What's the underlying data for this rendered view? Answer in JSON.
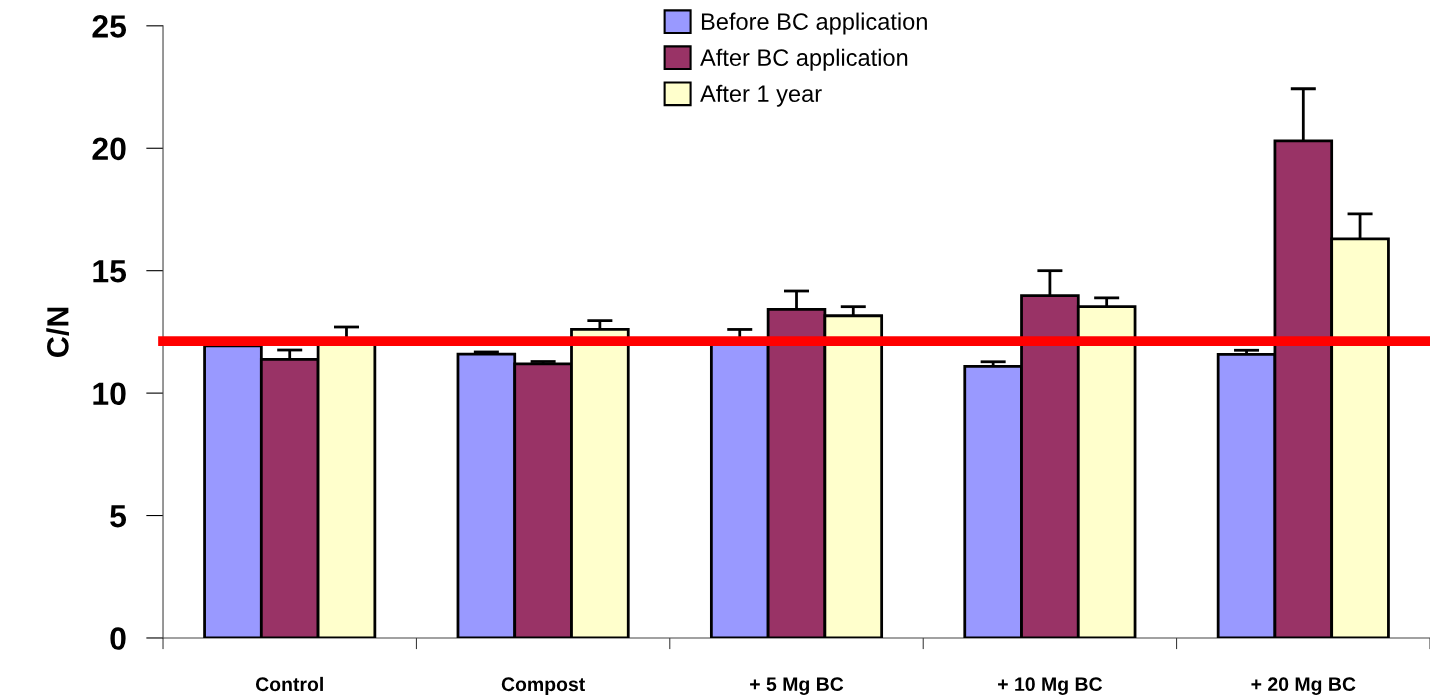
{
  "chart_data": {
    "type": "bar",
    "ylabel": "C/N",
    "categories": [
      "Control",
      "Compost",
      "+ 5 Mg BC",
      "+ 10 Mg BC",
      "+ 20 Mg BC"
    ],
    "series": [
      {
        "name": "Before BC application",
        "color": "#9999ff",
        "values": [
          11.93,
          11.59,
          12.1,
          11.09,
          11.58
        ],
        "errors": [
          null,
          0.09,
          0.5,
          0.19,
          0.17
        ]
      },
      {
        "name": "After BC application",
        "color": "#993366",
        "values": [
          11.38,
          11.19,
          13.42,
          13.98,
          20.3
        ],
        "errors": [
          0.38,
          0.1,
          0.75,
          1.02,
          2.13
        ]
      },
      {
        "name": "After 1 year",
        "color": "#ffffcc",
        "values": [
          12.1,
          12.6,
          13.16,
          13.53,
          16.3
        ],
        "errors": [
          0.6,
          0.36,
          0.37,
          0.36,
          1.02
        ]
      }
    ],
    "ylim": [
      0,
      25
    ],
    "yticks": [
      0,
      5,
      10,
      15,
      20,
      25
    ],
    "grid": false,
    "legend": "top",
    "ref_lines": [
      {
        "axis": "y",
        "value": 12.12,
        "color": "#ff0000",
        "line_style": "solid"
      }
    ]
  }
}
